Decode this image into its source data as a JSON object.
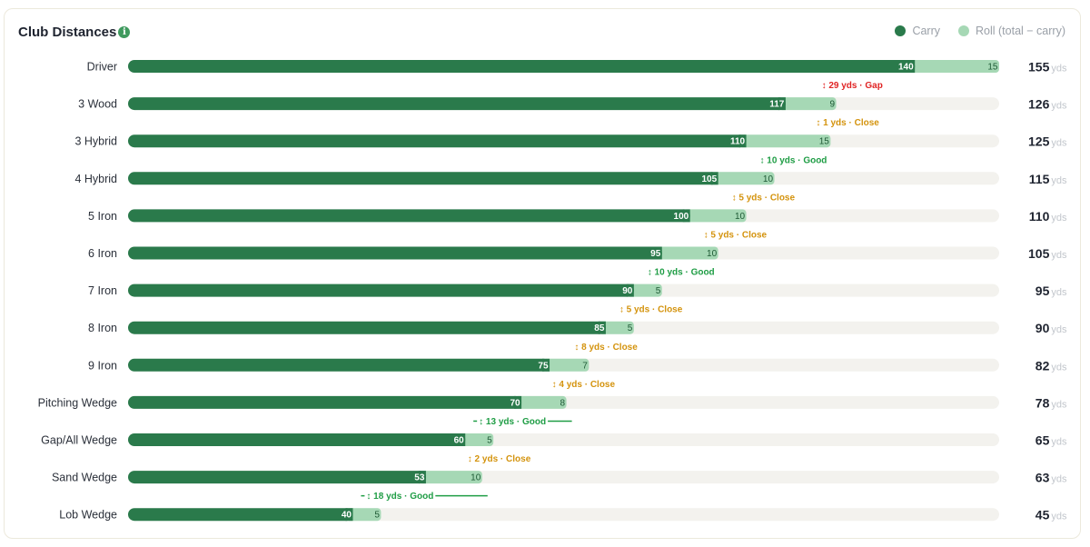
{
  "card": {
    "title": "Club Distances",
    "info_icon": "info-icon"
  },
  "legend": [
    {
      "label": "Carry",
      "color": "#2a7a4b"
    },
    {
      "label": "Roll (total − carry)",
      "color": "#a6d8b5"
    }
  ],
  "colors": {
    "carry": "#2a7a4b",
    "roll": "#a6d8b5",
    "track": "#f3f2ee",
    "gap": "#e02424",
    "close": "#d4930d",
    "good": "#1f9d45",
    "total": "#1f2430",
    "unit": "#c2c6cc"
  },
  "chart_data": {
    "type": "bar",
    "orientation": "horizontal",
    "stacked": true,
    "xlim": [
      0,
      155
    ],
    "unit": "yds",
    "series": [
      {
        "name": "Carry",
        "values": [
          140,
          117,
          110,
          105,
          100,
          95,
          90,
          85,
          75,
          70,
          60,
          53,
          40
        ]
      },
      {
        "name": "Roll (total − carry)",
        "values": [
          15,
          9,
          15,
          10,
          10,
          10,
          5,
          5,
          7,
          8,
          5,
          10,
          5
        ]
      }
    ],
    "clubs": [
      {
        "name": "Driver",
        "carry": 140,
        "roll": 15,
        "total": 155
      },
      {
        "name": "3 Wood",
        "carry": 117,
        "roll": 9,
        "total": 126
      },
      {
        "name": "3 Hybrid",
        "carry": 110,
        "roll": 15,
        "total": 125
      },
      {
        "name": "4 Hybrid",
        "carry": 105,
        "roll": 10,
        "total": 115
      },
      {
        "name": "5 Iron",
        "carry": 100,
        "roll": 10,
        "total": 110
      },
      {
        "name": "6 Iron",
        "carry": 95,
        "roll": 10,
        "total": 105
      },
      {
        "name": "7 Iron",
        "carry": 90,
        "roll": 5,
        "total": 95
      },
      {
        "name": "8 Iron",
        "carry": 85,
        "roll": 5,
        "total": 90
      },
      {
        "name": "9 Iron",
        "carry": 75,
        "roll": 7,
        "total": 82
      },
      {
        "name": "Pitching Wedge",
        "carry": 70,
        "roll": 8,
        "total": 78
      },
      {
        "name": "Gap/All Wedge",
        "carry": 60,
        "roll": 5,
        "total": 65
      },
      {
        "name": "Sand Wedge",
        "carry": 53,
        "roll": 10,
        "total": 63
      },
      {
        "name": "Lob Wedge",
        "carry": 40,
        "roll": 5,
        "total": 45
      }
    ],
    "gaps": [
      {
        "yds": 29,
        "label": "↕ 29 yds · Gap",
        "status": "gap"
      },
      {
        "yds": 1,
        "label": "↕ 1 yds · Close",
        "status": "close"
      },
      {
        "yds": 10,
        "label": "↕ 10 yds · Good",
        "status": "good"
      },
      {
        "yds": 5,
        "label": "↕ 5 yds · Close",
        "status": "close"
      },
      {
        "yds": 5,
        "label": "↕ 5 yds · Close",
        "status": "close"
      },
      {
        "yds": 10,
        "label": "↕ 10 yds · Good",
        "status": "good"
      },
      {
        "yds": 5,
        "label": "↕ 5 yds · Close",
        "status": "close"
      },
      {
        "yds": 8,
        "label": "↕ 8 yds · Close",
        "status": "close"
      },
      {
        "yds": 4,
        "label": "↕ 4 yds · Close",
        "status": "close"
      },
      {
        "yds": 13,
        "label": "↕ 13 yds · Good",
        "status": "good"
      },
      {
        "yds": 2,
        "label": "↕ 2 yds · Close",
        "status": "close"
      },
      {
        "yds": 18,
        "label": "↕ 18 yds · Good",
        "status": "good"
      }
    ]
  }
}
